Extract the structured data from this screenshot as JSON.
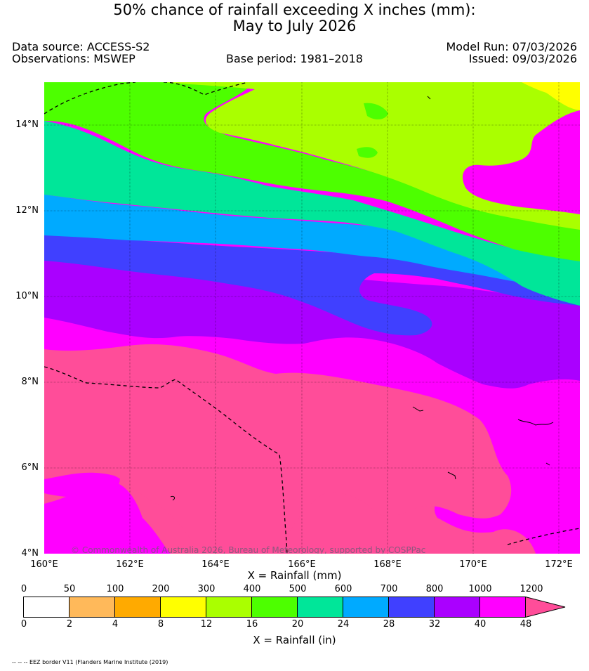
{
  "title": {
    "line1": "50% chance of rainfall exceeding X inches (mm):",
    "line2": "May to July 2026"
  },
  "header": {
    "data_source": "Data source: ACCESS-S2",
    "observations": "Observations: MSWEP",
    "base_period": "Base period: 1981–2018",
    "model_run": "Model Run: 07/03/2026",
    "issued": "Issued: 09/03/2026"
  },
  "map": {
    "lat_labels": [
      "14°N",
      "12°N",
      "10°N",
      "8°N",
      "6°N",
      "4°N"
    ],
    "lon_labels": [
      "160°E",
      "162°E",
      "164°E",
      "166°E",
      "168°E",
      "170°E",
      "172°E"
    ],
    "copyright": "© Commonwealth of Australia 2026, Bureau of Meteorology, supported by COSPPac",
    "colors": {
      "lt2": "#ffffff",
      "c2_4": "#ffb95a",
      "c4_8": "#ffaa00",
      "c8_12": "#ffff00",
      "c12_16": "#aaff00",
      "c16_20": "#4dff00",
      "c20_24": "#00e699",
      "c24_28": "#00aaff",
      "c28_32": "#4040ff",
      "c32_40": "#aa00ff",
      "c40_48": "#ff00ff",
      "gt48": "#ff4d99"
    }
  },
  "colorbar": {
    "mm_labels": [
      "0",
      "50",
      "100",
      "200",
      "300",
      "400",
      "500",
      "600",
      "700",
      "800",
      "1000",
      "1200"
    ],
    "in_labels": [
      "0",
      "2",
      "4",
      "8",
      "12",
      "16",
      "20",
      "24",
      "28",
      "32",
      "40",
      "48"
    ],
    "colors": [
      "#ffffff",
      "#ffb95a",
      "#ffaa00",
      "#ffff00",
      "#aaff00",
      "#4dff00",
      "#00e699",
      "#00aaff",
      "#4040ff",
      "#aa00ff",
      "#ff00ff",
      "#ff4d99"
    ],
    "mm_title": "X = Rainfall (mm)",
    "in_title": "X = Rainfall (in)"
  },
  "footnote": "-- -- -- EEZ border V11 (Flanders Marine Institute (2019)"
}
